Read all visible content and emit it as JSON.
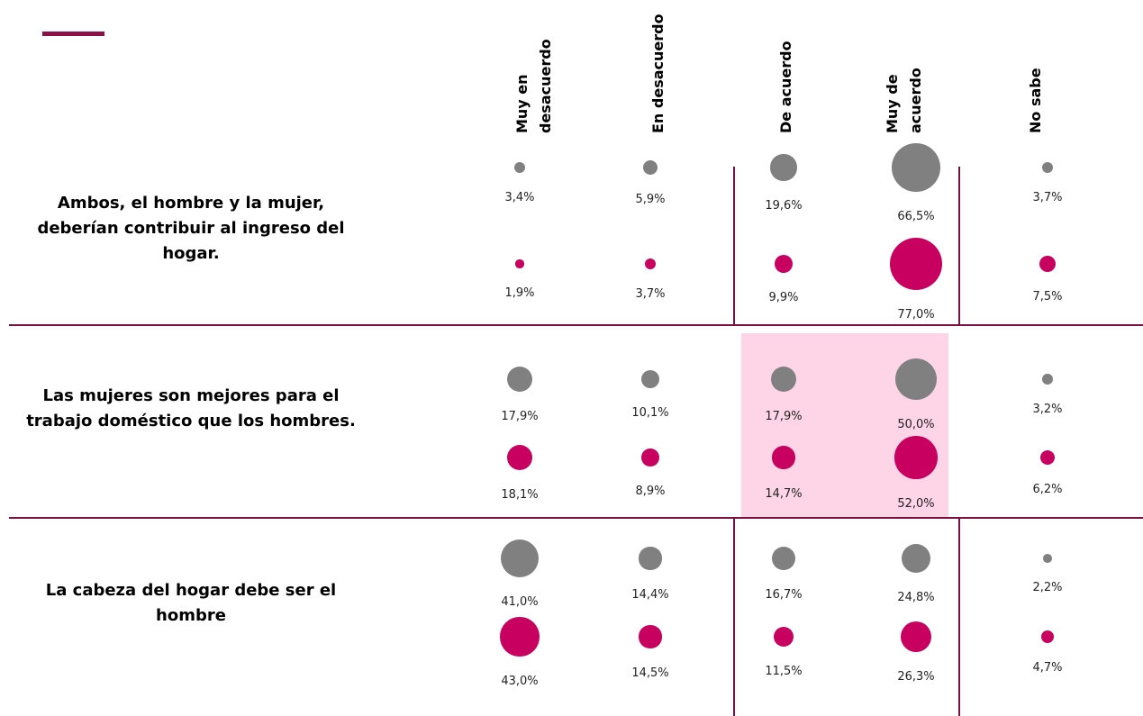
{
  "chart_data": {
    "type": "bubble",
    "categories": [
      "Muy en desacuerdo",
      "En desacuerdo",
      "De acuerdo",
      "Muy de acuerdo",
      "No sabe"
    ],
    "rows": [
      "Ambos, el hombre y la mujer, deberían contribuir al ingreso del hogar.",
      "Las mujeres son mejores para el trabajo doméstico que los hombres.",
      "La cabeza del hogar debe ser el hombre"
    ],
    "series": [
      {
        "color": "#808080",
        "values": [
          [
            3.4,
            5.9,
            19.6,
            66.5,
            3.7
          ],
          [
            17.9,
            10.1,
            17.9,
            50.0,
            3.2
          ],
          [
            41.0,
            14.4,
            16.7,
            24.8,
            2.2
          ]
        ],
        "value_labels": [
          [
            "3,4%",
            "5,9%",
            "19,6%",
            "66,5%",
            "3,7%"
          ],
          [
            "17,9%",
            "10,1%",
            "17,9%",
            "50,0%",
            "3,2%"
          ],
          [
            "41,0%",
            "14,4%",
            "16,7%",
            "24,8%",
            "2,2%"
          ]
        ]
      },
      {
        "color": "#c8005f",
        "values": [
          [
            1.9,
            3.7,
            9.9,
            77.0,
            7.5
          ],
          [
            18.1,
            8.9,
            14.7,
            52.0,
            6.2
          ],
          [
            43.0,
            14.5,
            11.5,
            26.3,
            4.7
          ]
        ],
        "value_labels": [
          [
            "1,9%",
            "3,7%",
            "9,9%",
            "77,0%",
            "7,5%"
          ],
          [
            "18,1%",
            "8,9%",
            "14,7%",
            "52,0%",
            "6,2%"
          ],
          [
            "43,0%",
            "14,5%",
            "11,5%",
            "26,3%",
            "4,7%"
          ]
        ]
      }
    ]
  }
}
